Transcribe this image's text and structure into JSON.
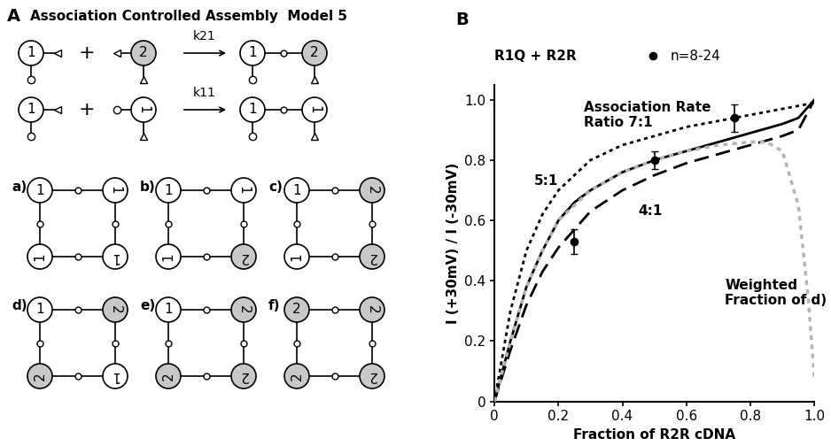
{
  "panel_a": {
    "label": "A",
    "title": "Association Controlled Assembly  Model 5",
    "plus": "+",
    "subunit_colors": {
      "1": "#ffffff",
      "2": "#c8c8c8"
    },
    "reactions": [
      {
        "rate": "k21",
        "reactants": [
          "1",
          "2"
        ]
      },
      {
        "rate": "k11",
        "reactants": [
          "1",
          "1"
        ]
      }
    ],
    "assemblies": [
      {
        "label": "a)",
        "subunits": [
          "1",
          "1",
          "1",
          "1"
        ]
      },
      {
        "label": "b)",
        "subunits": [
          "1",
          "1",
          "2",
          "1"
        ]
      },
      {
        "label": "c)",
        "subunits": [
          "1",
          "2",
          "2",
          "1"
        ]
      },
      {
        "label": "d)",
        "subunits": [
          "1",
          "2",
          "1",
          "2"
        ]
      },
      {
        "label": "e)",
        "subunits": [
          "1",
          "2",
          "2",
          "2"
        ]
      },
      {
        "label": "f)",
        "subunits": [
          "2",
          "2",
          "2",
          "2"
        ]
      }
    ]
  },
  "chart_data": {
    "type": "line",
    "panel_label": "B",
    "title": "R1Q + R2R",
    "xlabel": "Fraction of R2R cDNA",
    "ylabel": "I (+30mV) / I (-30mV)",
    "xlim": [
      0,
      1.0
    ],
    "ylim": [
      0,
      1.05
    ],
    "xticks": [
      0,
      0.2,
      0.4,
      0.6,
      0.8,
      1.0
    ],
    "yticks": [
      0,
      0.2,
      0.4,
      0.6,
      0.8,
      1.0
    ],
    "grid": false,
    "legend": "center",
    "series": [
      {
        "name": "Association Rate\nRatio 7:1",
        "type": "line",
        "color": "#000000",
        "line_style": "dotted",
        "x": [
          0,
          0.05,
          0.1,
          0.15,
          0.2,
          0.3,
          0.4,
          0.5,
          0.6,
          0.7,
          0.8,
          0.9,
          1.0
        ],
        "values": [
          0,
          0.3,
          0.5,
          0.62,
          0.7,
          0.8,
          0.85,
          0.88,
          0.91,
          0.93,
          0.95,
          0.97,
          0.99
        ]
      },
      {
        "name": "5:1",
        "type": "line",
        "color": "#000000",
        "line_style": "solid",
        "x": [
          0,
          0.05,
          0.1,
          0.15,
          0.2,
          0.25,
          0.3,
          0.4,
          0.5,
          0.6,
          0.7,
          0.8,
          0.9,
          0.95,
          1.0
        ],
        "values": [
          0,
          0.2,
          0.38,
          0.5,
          0.6,
          0.66,
          0.7,
          0.76,
          0.8,
          0.83,
          0.86,
          0.89,
          0.92,
          0.94,
          1.0
        ]
      },
      {
        "name": "4:1",
        "type": "line",
        "color": "#000000",
        "line_style": "dashed",
        "x": [
          0,
          0.05,
          0.1,
          0.15,
          0.2,
          0.25,
          0.3,
          0.4,
          0.5,
          0.6,
          0.7,
          0.8,
          0.9,
          0.95,
          1.0
        ],
        "values": [
          0,
          0.17,
          0.32,
          0.43,
          0.51,
          0.57,
          0.63,
          0.7,
          0.75,
          0.79,
          0.82,
          0.85,
          0.88,
          0.9,
          1.0
        ]
      },
      {
        "name": "Weighted\nFraction of d)",
        "type": "line",
        "color": "#b4b4b4",
        "line_style": "dotted",
        "x": [
          0,
          0.05,
          0.1,
          0.15,
          0.2,
          0.3,
          0.4,
          0.5,
          0.6,
          0.7,
          0.8,
          0.85,
          0.9,
          0.95,
          0.98,
          1.0
        ],
        "values": [
          0,
          0.2,
          0.38,
          0.5,
          0.6,
          0.7,
          0.76,
          0.8,
          0.83,
          0.85,
          0.86,
          0.86,
          0.83,
          0.65,
          0.35,
          0.08
        ]
      },
      {
        "name": "n=8-24",
        "type": "scatter",
        "color": "#000000",
        "marker": "o",
        "x": [
          0.25,
          0.5,
          0.75
        ],
        "values": [
          0.53,
          0.8,
          0.94
        ],
        "errors": [
          0.04,
          0.03,
          0.045
        ]
      }
    ]
  }
}
